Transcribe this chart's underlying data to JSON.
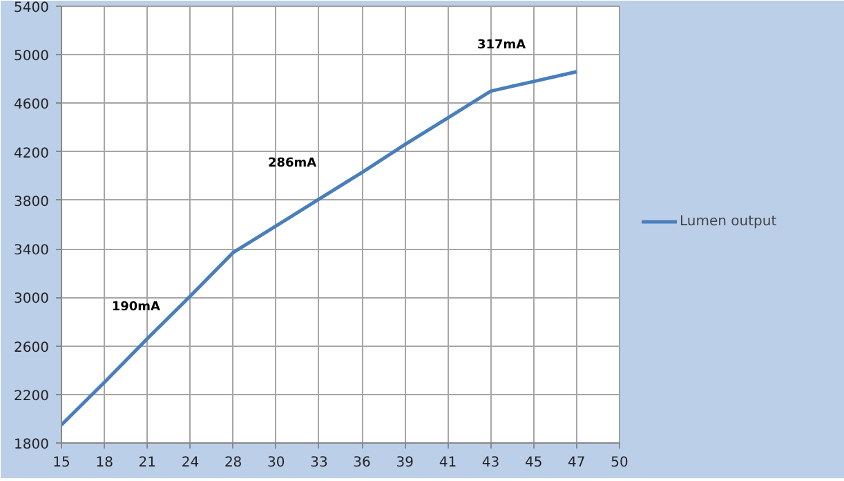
{
  "chart_data": {
    "type": "line",
    "categories": [
      "15",
      "18",
      "21",
      "24",
      "28",
      "30",
      "33",
      "36",
      "39",
      "41",
      "43",
      "45",
      "47",
      "50"
    ],
    "series": [
      {
        "name": "Lumen output",
        "color": "#4a7ebb",
        "values": [
          1950,
          2300,
          2660,
          3010,
          3370,
          3590,
          3810,
          4030,
          4260,
          4480,
          4700,
          4780,
          4860,
          null
        ]
      }
    ],
    "ylim": [
      1800,
      5400
    ],
    "yticks": [
      1800,
      2200,
      2600,
      3000,
      3400,
      3800,
      4200,
      4600,
      5000,
      5400
    ],
    "grid": true,
    "legend": "right",
    "marker": "none",
    "line_style": "solid",
    "annotations": [
      "190mA",
      "286mA",
      "317mA"
    ]
  }
}
